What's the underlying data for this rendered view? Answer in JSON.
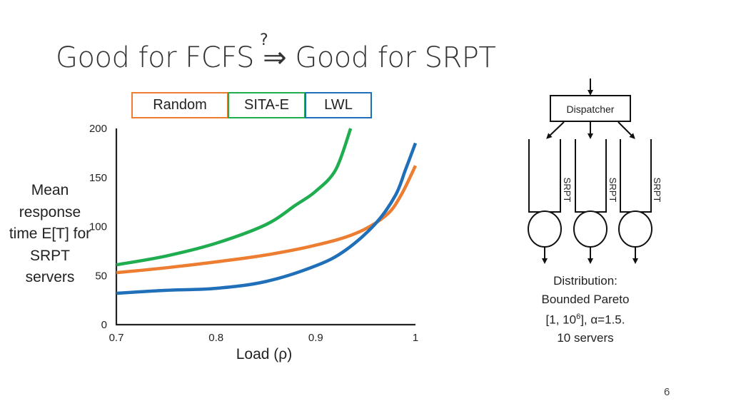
{
  "title": {
    "text": "Good for FCFS ⇒ Good for SRPT",
    "question_mark": "?"
  },
  "chart_data": {
    "type": "line",
    "title": "",
    "xlabel": "Load (ρ)",
    "ylabel": "Mean response time E[T] for SRPT servers",
    "xlim": [
      0.7,
      1.0
    ],
    "ylim": [
      0,
      200
    ],
    "x_ticks": [
      0.7,
      0.8,
      0.9,
      1
    ],
    "x_tick_labels": [
      "0.7",
      "0.8",
      "0.9",
      "1"
    ],
    "y_ticks": [
      0,
      50,
      100,
      150,
      200
    ],
    "y_tick_labels": [
      "0",
      "50",
      "100",
      "150",
      "200"
    ],
    "grid": false,
    "legend_position": "top",
    "series": [
      {
        "name": "Random",
        "color": "#ED7D31",
        "x": [
          0.7,
          0.75,
          0.8,
          0.85,
          0.9,
          0.94,
          0.97,
          0.985,
          1.0
        ],
        "y": [
          53,
          58,
          64,
          71,
          81,
          93,
          111,
          131,
          162
        ]
      },
      {
        "name": "SITA-E",
        "color": "#1FAD4F",
        "x": [
          0.7,
          0.75,
          0.8,
          0.85,
          0.88,
          0.9,
          0.92,
          0.935
        ],
        "y": [
          61,
          70,
          83,
          102,
          122,
          136,
          158,
          200
        ]
      },
      {
        "name": "LWL",
        "color": "#1F6FB9",
        "x": [
          0.7,
          0.75,
          0.8,
          0.85,
          0.9,
          0.93,
          0.96,
          0.98,
          0.99,
          1.0
        ],
        "y": [
          32,
          35,
          37,
          44,
          60,
          76,
          103,
          132,
          158,
          185
        ]
      }
    ]
  },
  "diagram": {
    "dispatcher_label": "Dispatcher",
    "server_labels": [
      "SRPT",
      "SRPT",
      "SRPT"
    ]
  },
  "distribution": {
    "line1": "Distribution:",
    "line2": "Bounded Pareto",
    "line3_prefix": "[1, 10",
    "line3_sup": "6",
    "line3_suffix": "], α=1.5.",
    "line4": "10 servers"
  },
  "page_number": "6"
}
